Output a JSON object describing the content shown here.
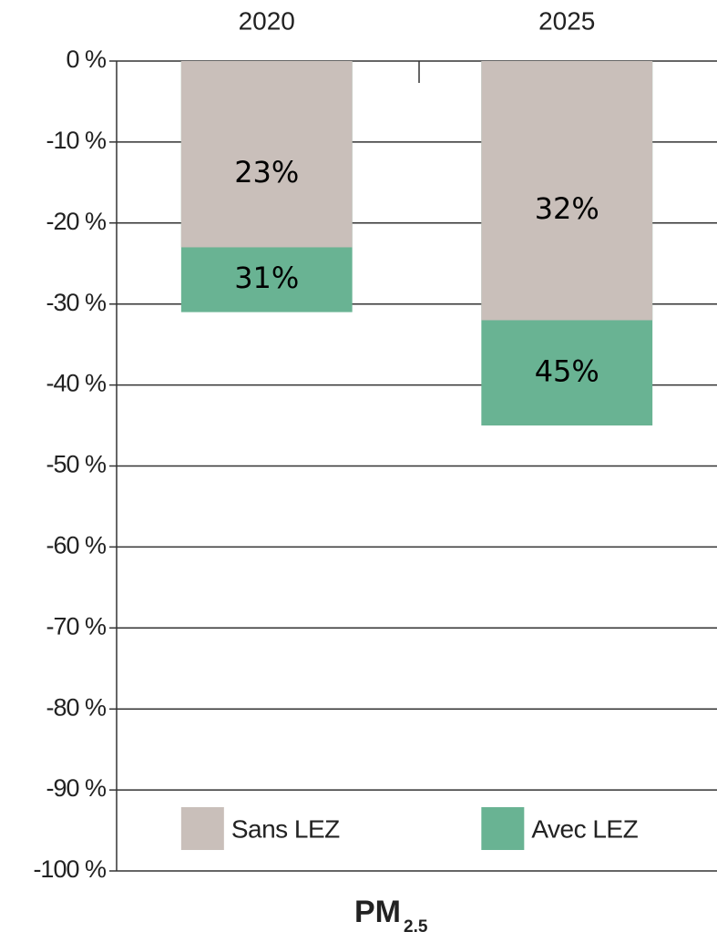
{
  "chart_data": {
    "type": "bar",
    "categories": [
      "2020",
      "2025"
    ],
    "series": [
      {
        "name": "Sans LEZ",
        "color": "#c9bfba",
        "values": [
          -23,
          -32
        ],
        "value_labels": [
          "23%",
          "32%"
        ]
      },
      {
        "name": "Avec LEZ",
        "color": "#69b393",
        "values": [
          -31,
          -45
        ],
        "value_labels": [
          "31%",
          "45%"
        ]
      }
    ],
    "ylim": [
      -100,
      0
    ],
    "yticks": [
      {
        "value": 0,
        "label": "0 %"
      },
      {
        "value": -10,
        "label": "-10 %"
      },
      {
        "value": -20,
        "label": "-20 %"
      },
      {
        "value": -30,
        "label": "-30 %"
      },
      {
        "value": -40,
        "label": "-40 %"
      },
      {
        "value": -50,
        "label": "-50 %"
      },
      {
        "value": -60,
        "label": "-60 %"
      },
      {
        "value": -70,
        "label": "-70 %"
      },
      {
        "value": -80,
        "label": "-80 %"
      },
      {
        "value": -90,
        "label": "-90 %"
      },
      {
        "value": -100,
        "label": "-100 %"
      }
    ],
    "grid": true,
    "legend": "bottom",
    "xlabel": {
      "text": "PM",
      "subscript": "2.5"
    }
  }
}
